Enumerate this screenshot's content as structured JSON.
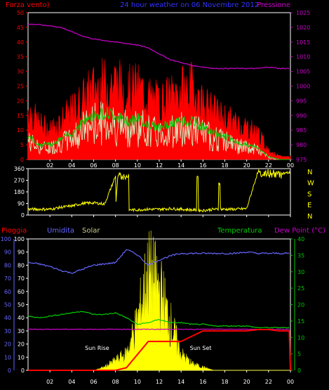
{
  "header": {
    "left": "Forza vento)",
    "center": "24 hour weather on  06 Novembre 2012",
    "right": "Pressione"
  },
  "panels": {
    "wind": {
      "left_ticks": [
        "0",
        "5",
        "10",
        "15",
        "20",
        "25",
        "30",
        "35",
        "40",
        "45",
        "50"
      ],
      "right_ticks": [
        "975",
        "980",
        "985",
        "990",
        "995",
        "1000",
        "1005",
        "1010",
        "1015",
        "1020",
        "1025"
      ]
    },
    "dir": {
      "left_ticks": [
        "0",
        "90",
        "180",
        "270",
        "360"
      ],
      "compass": [
        "N",
        "W",
        "S",
        "E",
        "N"
      ]
    },
    "bottom": {
      "labels": {
        "pioggia": "Pioggia",
        "umidita": "Umidita",
        "solar": "Solar",
        "temperatura": "Temperatura",
        "dewpoint": "Dew Point (°C)"
      },
      "rain_ticks": [
        "0",
        "10",
        "20",
        "30",
        "40",
        "50",
        "60",
        "70",
        "80",
        "90",
        "100"
      ],
      "hum_ticks": [
        "0",
        "10",
        "20",
        "30",
        "40",
        "50",
        "60",
        "70",
        "80",
        "90",
        "100"
      ],
      "temp_ticks": [
        "0",
        "5",
        "10",
        "15",
        "20",
        "25",
        "30",
        "35",
        "40"
      ],
      "annotations": {
        "sunrise": "Sun Rise",
        "sunset": "Sun Set"
      }
    }
  },
  "x_ticks": [
    "02",
    "04",
    "06",
    "08",
    "10",
    "12",
    "14",
    "16",
    "18",
    "20",
    "22",
    "00"
  ],
  "colors": {
    "bg": "#000000",
    "frame": "#ffffff",
    "wind": "#ff0000",
    "avg": "#00cc00",
    "gust_white": "#ccffcc",
    "pressure": "#cc00cc",
    "dir": "#ffff00",
    "humidity": "#6666ff",
    "temp": "#00cc00",
    "dew": "#cc00cc",
    "rain": "#ff0000",
    "solar": "#ffff00"
  },
  "chart_data": [
    {
      "type": "line",
      "title": "24 hour weather on  06 Novembre 2012",
      "xlabel": "",
      "ylabel": "Forza vento)",
      "y2label": "Pressione",
      "x": [
        0,
        1,
        2,
        3,
        4,
        5,
        6,
        7,
        8,
        9,
        10,
        11,
        12,
        13,
        14,
        15,
        16,
        17,
        18,
        19,
        20,
        21,
        22,
        23,
        24
      ],
      "ylim": [
        0,
        50
      ],
      "y2lim": [
        975,
        1025
      ],
      "series": [
        {
          "axis": "left",
          "values": [
            17,
            12,
            10,
            13,
            16,
            20,
            24,
            25,
            26,
            23,
            24,
            21,
            19,
            21,
            23,
            24,
            19,
            16,
            14,
            12,
            11,
            9,
            3,
            1,
            1
          ]
        },
        {
          "axis": "left",
          "values": [
            8,
            5,
            5,
            7,
            9,
            13,
            15,
            16,
            15,
            13,
            14,
            12,
            11,
            12,
            13,
            13,
            11,
            9,
            8,
            6,
            5,
            4,
            1,
            0,
            0
          ]
        },
        {
          "axis": "right",
          "values": [
            1021,
            1021,
            1020.5,
            1020,
            1018.5,
            1017,
            1016,
            1015.5,
            1015,
            1014.5,
            1014,
            1013,
            1011,
            1009,
            1008,
            1007,
            1006.5,
            1006,
            1006,
            1006,
            1006,
            1006,
            1006.5,
            1006,
            1006
          ]
        }
      ]
    },
    {
      "type": "line",
      "xlabel": "",
      "ylabel": "",
      "x": [
        0,
        1,
        2,
        3,
        4,
        5,
        6,
        7,
        8,
        9,
        10,
        11,
        12,
        13,
        14,
        15,
        16,
        17,
        18,
        19,
        20,
        21,
        22,
        23,
        24
      ],
      "ylim": [
        0,
        360
      ],
      "series": [
        {
          "values": [
            45,
            45,
            45,
            60,
            70,
            90,
            95,
            85,
            300,
            40,
            40,
            45,
            45,
            50,
            45,
            40,
            35,
            45,
            45,
            45,
            50,
            330,
            330,
            320,
            330
          ]
        }
      ]
    },
    {
      "type": "line",
      "xlabel": "",
      "ylabel": "Pioggia",
      "x": [
        0,
        1,
        2,
        3,
        4,
        5,
        6,
        7,
        8,
        9,
        10,
        11,
        12,
        13,
        14,
        15,
        16,
        17,
        18,
        19,
        20,
        21,
        22,
        23,
        24
      ],
      "ylim": [
        0,
        100
      ],
      "y2lim": [
        0,
        40
      ],
      "series": [
        {
          "values": [
            0,
            0,
            0,
            0,
            0,
            0,
            0,
            0,
            0,
            2,
            12,
            22,
            22,
            22,
            22,
            26,
            30,
            30,
            30,
            30,
            30,
            31,
            31,
            30,
            30
          ]
        },
        {
          "values": [
            82,
            81,
            79,
            76,
            74,
            77,
            80,
            81,
            82,
            92,
            88,
            80,
            84,
            87,
            89,
            89,
            89,
            89,
            89,
            89,
            90,
            89,
            89,
            89,
            89
          ]
        },
        {
          "values": [
            16.5,
            16,
            16.5,
            17,
            17.5,
            18,
            17,
            17,
            17.5,
            16,
            14,
            14.5,
            15.5,
            14.5,
            14.5,
            14,
            14,
            13.5,
            13.5,
            13.5,
            13.5,
            13,
            13,
            13,
            13
          ]
        },
        {
          "values": [
            12.5,
            12.5,
            12.5,
            12.5,
            12.5,
            12.5,
            12.5,
            12.5,
            12.5,
            12.5,
            12.5,
            12.5,
            12.5,
            12.5,
            12.5,
            12.5,
            12.5,
            12.5,
            12.5,
            12.5,
            12.5,
            12.5,
            12.5,
            12.5,
            12.5
          ]
        },
        {
          "values": [
            0,
            0,
            0,
            0,
            0,
            0,
            0,
            1,
            3,
            5,
            15,
            30,
            25,
            15,
            5,
            2,
            1,
            0,
            0,
            0,
            0,
            0,
            0,
            0,
            0
          ]
        }
      ]
    }
  ]
}
